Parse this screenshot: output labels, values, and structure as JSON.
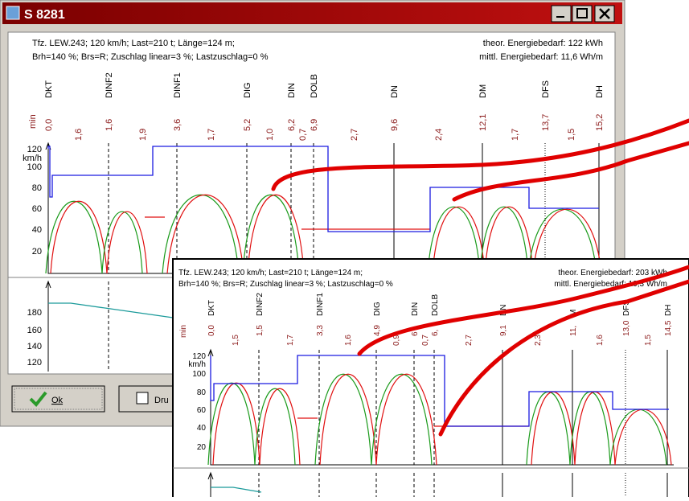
{
  "window": {
    "title": "S 8281",
    "buttons": {
      "ok": "Ok",
      "print": "Dru"
    }
  },
  "main": {
    "header": {
      "line1": "Tfz. LEW.243; 120 km/h; Last=210 t; Länge=124 m;",
      "line2": "Brh=140 %; Brs=R; Zuschlag linear=3 %; Lastzuschlag=0 %",
      "energy1": "theor. Energiebedarf: 122 kWh",
      "energy2": "mittl. Energiebedarf: 11,6 Wh/m"
    },
    "axis": {
      "time_unit": "min",
      "speed_unit": "km/h",
      "speed_ticks": [
        "120",
        "100",
        "80",
        "60",
        "40",
        "20"
      ],
      "lower_ticks": [
        "180",
        "160",
        "140",
        "120"
      ]
    },
    "stations": [
      {
        "label": "DKT",
        "time": "0,0"
      },
      {
        "label": "DINF2",
        "time": "1,6"
      },
      {
        "label": "DINF1",
        "time": "3,6"
      },
      {
        "label": "DIG",
        "time": "5,2"
      },
      {
        "label": "DIN",
        "time": "6,2"
      },
      {
        "label": "DOLB",
        "time": "6,9"
      },
      {
        "label": "DN",
        "time": "9,6"
      },
      {
        "label": "DM",
        "time": "12,1"
      },
      {
        "label": "DFS",
        "time": "13,7"
      },
      {
        "label": "DH",
        "time": "15,2"
      }
    ],
    "segments": [
      "1,6",
      "1,9",
      "1,7",
      "1,0",
      "0,7",
      "2,7",
      "2,4",
      "1,7",
      "1,5"
    ]
  },
  "inset": {
    "header": {
      "line1": "Tfz. LEW.243; 120 km/h; Last=210 t; Länge=124 m;",
      "line2": "Brh=140 %; Brs=R; Zuschlag linear=3 %; Lastzuschlag=0 %",
      "energy1": "theor. Energiebedarf: 203 kWh",
      "energy2": "mittl. Energiebedarf: 19,3 Wh/m"
    },
    "axis": {
      "time_unit": "min",
      "speed_unit": "km/h",
      "speed_ticks": [
        "120",
        "100",
        "80",
        "60",
        "40",
        "20"
      ]
    },
    "stations": [
      {
        "label": "DKT",
        "time": "0,0"
      },
      {
        "label": "DINF2",
        "time": "1,5"
      },
      {
        "label": "DINF1",
        "time": "3,3"
      },
      {
        "label": "DIG",
        "time": "4,9"
      },
      {
        "label": "DIN",
        "time": "6"
      },
      {
        "label": "DOLB",
        "time": "6,"
      },
      {
        "label": "DN",
        "time": "9,1"
      },
      {
        "label": "M",
        "time": "11,"
      },
      {
        "label": "DFS",
        "time": "13,0"
      },
      {
        "label": "DH",
        "time": "14,5"
      }
    ],
    "segments": [
      "1,5",
      "1,7",
      "1,6",
      "0,9",
      "0,7",
      "2,7",
      "2,3",
      "1,6",
      "1,5"
    ]
  }
}
